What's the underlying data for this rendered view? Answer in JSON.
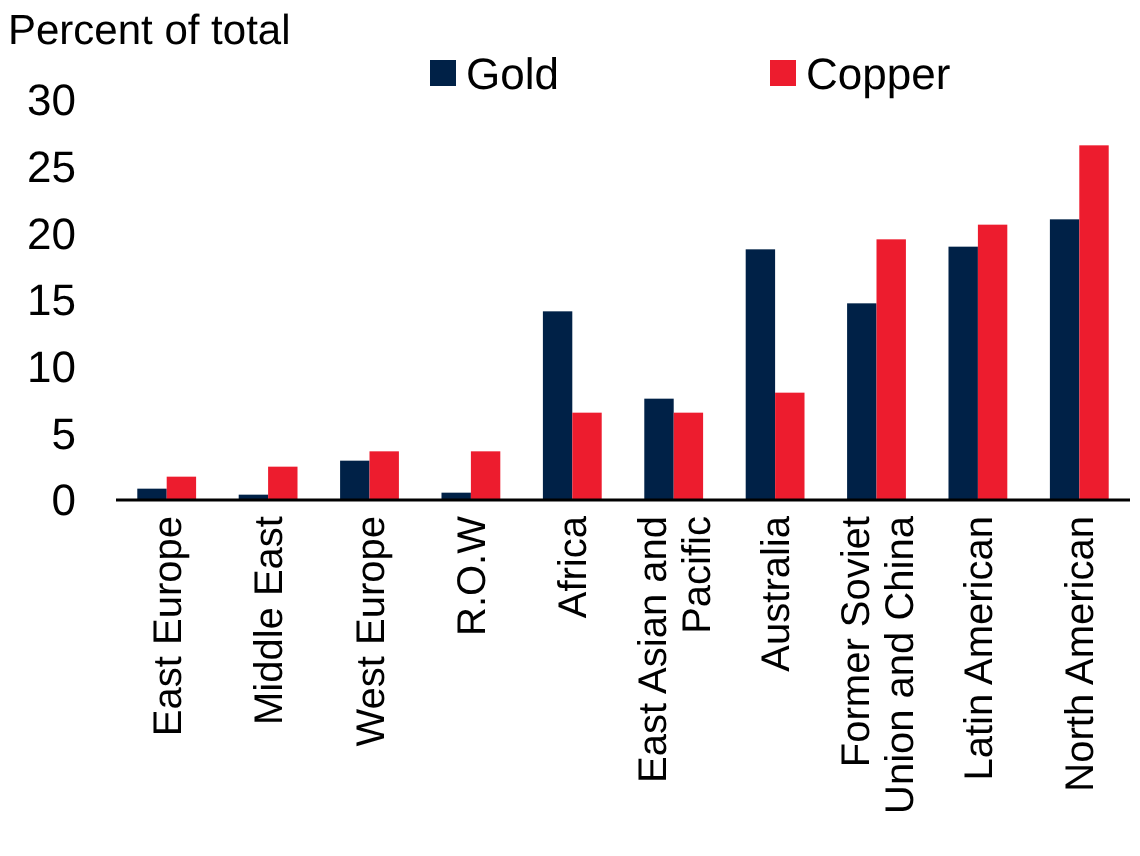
{
  "chart_data": {
    "type": "bar",
    "ylabel": "Percent of total",
    "categories": [
      "East Europe",
      "Middle East",
      "West Europe",
      "R.O.W",
      "Africa",
      "East Asian and Pacific",
      "Australia",
      "Former Soviet Union and China",
      "Latin American",
      "North American"
    ],
    "series": [
      {
        "name": "Gold",
        "color": "#002147",
        "values": [
          0.85,
          0.4,
          2.95,
          0.55,
          14.15,
          7.6,
          18.8,
          14.75,
          19,
          21.05
        ]
      },
      {
        "name": "Copper",
        "color": "#ed1c2e",
        "values": [
          1.75,
          2.5,
          3.65,
          3.65,
          6.55,
          6.55,
          8.05,
          19.55,
          20.65,
          26.6
        ]
      }
    ],
    "ylim": [
      0,
      30
    ],
    "yticks": [
      0,
      5,
      10,
      15,
      20,
      25,
      30
    ],
    "grid": false,
    "legend": "top"
  }
}
